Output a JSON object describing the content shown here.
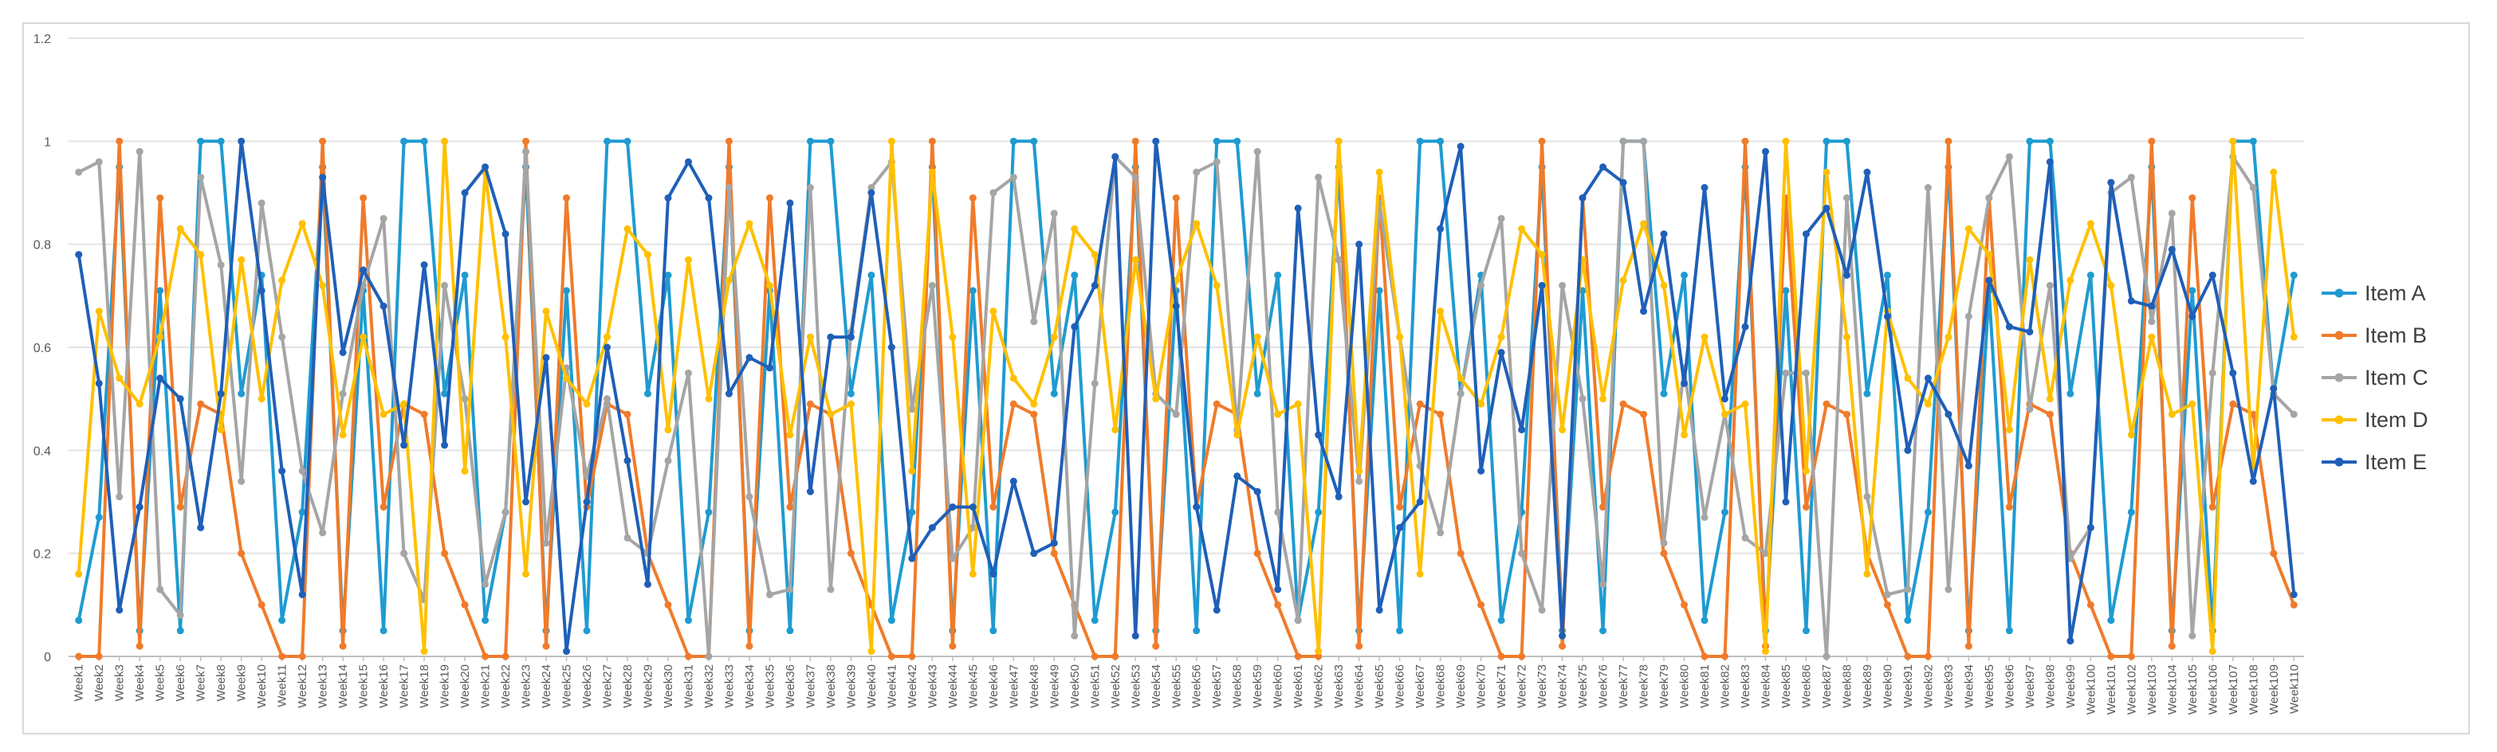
{
  "chart_data": {
    "type": "line",
    "title": "",
    "xlabel": "",
    "ylabel": "",
    "ylim": [
      0,
      1.2
    ],
    "yticks": [
      "0",
      "0.2",
      "0.4",
      "0.6",
      "0.8",
      "1",
      "1.2"
    ],
    "grid": true,
    "legend_position": "right",
    "x": [
      "Week1",
      "Week2",
      "Week3",
      "Week4",
      "Week5",
      "Week6",
      "Week7",
      "Week8",
      "Week9",
      "Week10",
      "Week11",
      "Week12",
      "Week13",
      "Week14",
      "Week15",
      "Week16",
      "Week17",
      "Week18",
      "Week19",
      "Week20",
      "Week21",
      "Week22",
      "Week23",
      "Week24",
      "Week25",
      "Week26",
      "Week27",
      "Week28",
      "Week29",
      "Week30",
      "Week31",
      "Week32",
      "Week33",
      "Week34",
      "Week35",
      "Week36",
      "Week37",
      "Week38",
      "Week39",
      "Week40",
      "Week41",
      "Week42",
      "Week43",
      "Week44",
      "Week45",
      "Week46",
      "Week47",
      "Week48",
      "Week49",
      "Week50",
      "Week51",
      "Week52",
      "Week53",
      "Week54",
      "Week55",
      "Week56",
      "Week57",
      "Week58",
      "Week59",
      "Week60",
      "Week61",
      "Week62",
      "Week63",
      "Week64",
      "Week65",
      "Week66",
      "Week67",
      "Week68",
      "Week69",
      "Week70",
      "Week71",
      "Week72",
      "Week73",
      "Week74",
      "Week75",
      "Week76",
      "Week77",
      "Week78",
      "Week79",
      "Week80",
      "Week81",
      "Week82",
      "Week83",
      "Week84",
      "Week85",
      "Week86",
      "Week87",
      "Week88",
      "Week89",
      "Week90",
      "Week91",
      "Week92",
      "Week93",
      "Week94",
      "Week95",
      "Week96",
      "Week97",
      "Week98",
      "Week99",
      "Week100",
      "Week101",
      "Week102",
      "Week103",
      "Week104",
      "Week105",
      "Week106",
      "Week107",
      "Week108",
      "Week109",
      "Week110"
    ],
    "series": [
      {
        "name": "Item A",
        "color": "#1f9bd1",
        "values": [
          0.07,
          0.27,
          0.95,
          0.05,
          0.71,
          0.05,
          1.0,
          1.0,
          0.51,
          0.74,
          0.07,
          0.28,
          0.95,
          0.05,
          0.71,
          0.05,
          1.0,
          1.0,
          0.51,
          0.74,
          0.07,
          0.28,
          0.95,
          0.05,
          0.71,
          0.05,
          1.0,
          1.0,
          0.51,
          0.74,
          0.07,
          0.28,
          0.95,
          0.05,
          0.71,
          0.05,
          1.0,
          1.0,
          0.51,
          0.74,
          0.07,
          0.28,
          0.95,
          0.05,
          0.71,
          0.05,
          1.0,
          1.0,
          0.51,
          0.74,
          0.07,
          0.28,
          0.95,
          0.05,
          0.71,
          0.05,
          1.0,
          1.0,
          0.51,
          0.74,
          0.07,
          0.28,
          0.95,
          0.05,
          0.71,
          0.05,
          1.0,
          1.0,
          0.51,
          0.74,
          0.07,
          0.28,
          0.95,
          0.05,
          0.71,
          0.05,
          1.0,
          1.0,
          0.51,
          0.74,
          0.07,
          0.28,
          0.95,
          0.05,
          0.71,
          0.05,
          1.0,
          1.0,
          0.51,
          0.74,
          0.07,
          0.28,
          0.95,
          0.05,
          0.71,
          0.05,
          1.0,
          1.0,
          0.51,
          0.74,
          0.07,
          0.28,
          0.95,
          0.05,
          0.71,
          0.05,
          1.0,
          1.0,
          0.51,
          0.74
        ]
      },
      {
        "name": "Item B",
        "color": "#f07b2a",
        "values": [
          0.0,
          0.0,
          1.0,
          0.02,
          0.89,
          0.29,
          0.49,
          0.47,
          0.2,
          0.1,
          0.0,
          0.0,
          1.0,
          0.02,
          0.89,
          0.29,
          0.49,
          0.47,
          0.2,
          0.1,
          0.0,
          0.0,
          1.0,
          0.02,
          0.89,
          0.29,
          0.49,
          0.47,
          0.2,
          0.1,
          0.0,
          0.0,
          1.0,
          0.02,
          0.89,
          0.29,
          0.49,
          0.47,
          0.2,
          0.1,
          0.0,
          0.0,
          1.0,
          0.02,
          0.89,
          0.29,
          0.49,
          0.47,
          0.2,
          0.1,
          0.0,
          0.0,
          1.0,
          0.02,
          0.89,
          0.29,
          0.49,
          0.47,
          0.2,
          0.1,
          0.0,
          0.0,
          1.0,
          0.02,
          0.89,
          0.29,
          0.49,
          0.47,
          0.2,
          0.1,
          0.0,
          0.0,
          1.0,
          0.02,
          0.89,
          0.29,
          0.49,
          0.47,
          0.2,
          0.1,
          0.0,
          0.0,
          1.0,
          0.02,
          0.89,
          0.29,
          0.49,
          0.47,
          0.2,
          0.1,
          0.0,
          0.0,
          1.0,
          0.02,
          0.89,
          0.29,
          0.49,
          0.47,
          0.2,
          0.1,
          0.0,
          0.0,
          1.0,
          0.02,
          0.89,
          0.29,
          0.49,
          0.47,
          0.2,
          0.1
        ]
      },
      {
        "name": "Item C",
        "color": "#a5a5a5",
        "values": [
          0.94,
          0.96,
          0.31,
          0.98,
          0.13,
          0.08,
          0.93,
          0.76,
          0.34,
          0.88,
          0.62,
          0.36,
          0.24,
          0.51,
          0.72,
          0.85,
          0.2,
          0.11,
          0.72,
          0.5,
          0.14,
          0.28,
          0.98,
          0.22,
          0.56,
          0.35,
          0.5,
          0.23,
          0.2,
          0.38,
          0.55,
          0.0,
          0.91,
          0.31,
          0.12,
          0.13,
          0.91,
          0.13,
          0.63,
          0.91,
          0.96,
          0.48,
          0.72,
          0.19,
          0.25,
          0.9,
          0.93,
          0.65,
          0.86,
          0.04,
          0.53,
          0.97,
          0.93,
          0.51,
          0.47,
          0.94,
          0.96,
          0.44,
          0.98,
          0.28,
          0.07,
          0.93,
          0.77,
          0.34,
          0.88,
          0.62,
          0.37,
          0.24,
          0.51,
          0.72,
          0.85,
          0.2,
          0.09,
          0.72,
          0.5,
          0.14,
          1.0,
          1.0,
          0.22,
          0.56,
          0.27,
          0.47,
          0.23,
          0.2,
          0.55,
          0.55,
          0.0,
          0.89,
          0.31,
          0.12,
          0.13,
          0.91,
          0.13,
          0.66,
          0.89,
          0.97,
          0.48,
          0.72,
          0.19,
          0.25,
          0.9,
          0.93,
          0.65,
          0.86,
          0.04,
          0.55,
          0.97,
          0.91,
          0.51,
          0.47
        ]
      },
      {
        "name": "Item D",
        "color": "#ffc000",
        "values": [
          0.16,
          0.67,
          0.54,
          0.49,
          0.62,
          0.83,
          0.78,
          0.44,
          0.77,
          0.5,
          0.73,
          0.84,
          0.72,
          0.43,
          0.62,
          0.47,
          0.49,
          0.01,
          1.0,
          0.36,
          0.94,
          0.62,
          0.16,
          0.67,
          0.54,
          0.49,
          0.62,
          0.83,
          0.78,
          0.44,
          0.77,
          0.5,
          0.73,
          0.84,
          0.72,
          0.43,
          0.62,
          0.47,
          0.49,
          0.01,
          1.0,
          0.36,
          0.94,
          0.62,
          0.16,
          0.67,
          0.54,
          0.49,
          0.62,
          0.83,
          0.78,
          0.44,
          0.77,
          0.5,
          0.73,
          0.84,
          0.72,
          0.43,
          0.62,
          0.47,
          0.49,
          0.01,
          1.0,
          0.36,
          0.94,
          0.62,
          0.16,
          0.67,
          0.54,
          0.49,
          0.62,
          0.83,
          0.78,
          0.44,
          0.77,
          0.5,
          0.73,
          0.84,
          0.72,
          0.43,
          0.62,
          0.47,
          0.49,
          0.01,
          1.0,
          0.36,
          0.94,
          0.62,
          0.16,
          0.67,
          0.54,
          0.49,
          0.62,
          0.83,
          0.78,
          0.44,
          0.77,
          0.5,
          0.73,
          0.84,
          0.72,
          0.43,
          0.62,
          0.47,
          0.49,
          0.01,
          1.0,
          0.36,
          0.94,
          0.62
        ]
      },
      {
        "name": "Item E",
        "color": "#1f5fb8",
        "values": [
          0.78,
          0.53,
          0.09,
          0.29,
          0.54,
          0.5,
          0.25,
          0.51,
          1.0,
          0.71,
          0.36,
          0.12,
          0.93,
          0.59,
          0.75,
          0.68,
          0.41,
          0.76,
          0.41,
          0.9,
          0.95,
          0.82,
          0.3,
          0.58,
          0.01,
          0.3,
          0.6,
          0.38,
          0.14,
          0.89,
          0.96,
          0.89,
          0.51,
          0.58,
          0.56,
          0.88,
          0.32,
          0.62,
          0.62,
          0.9,
          0.6,
          0.19,
          0.25,
          0.29,
          0.29,
          0.16,
          0.34,
          0.2,
          0.22,
          0.64,
          0.72,
          0.97,
          0.04,
          1.0,
          0.68,
          0.29,
          0.09,
          0.35,
          0.32,
          0.13,
          0.87,
          0.43,
          0.31,
          0.8,
          0.09,
          0.25,
          0.3,
          0.83,
          0.99,
          0.36,
          0.59,
          0.44,
          0.72,
          0.04,
          0.89,
          0.95,
          0.92,
          0.67,
          0.82,
          0.53,
          0.91,
          0.5,
          0.64,
          0.98,
          0.3,
          0.82,
          0.87,
          0.74,
          0.94,
          0.66,
          0.4,
          0.54,
          0.47,
          0.37,
          0.73,
          0.64,
          0.63,
          0.96,
          0.03,
          0.25,
          0.92,
          0.69,
          0.68,
          0.79,
          0.66,
          0.74,
          0.55,
          0.34,
          0.52,
          0.12
        ]
      }
    ]
  }
}
